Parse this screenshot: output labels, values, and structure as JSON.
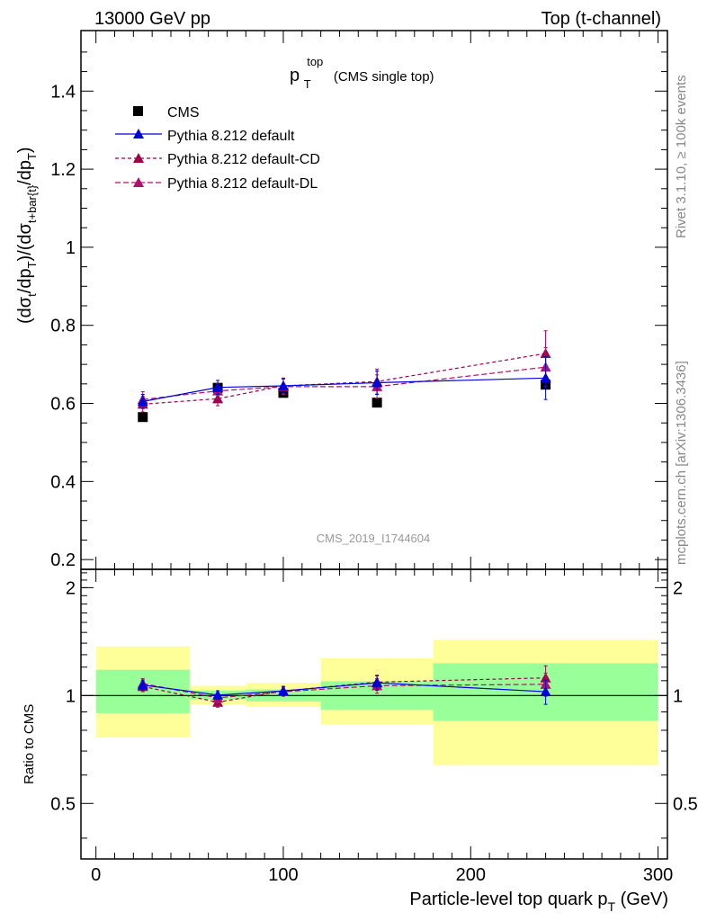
{
  "header": {
    "left": "13000 GeV pp",
    "right": "Top (t-channel)"
  },
  "side_labels": {
    "rivet": "Rivet 3.1.10, ≥ 100k events",
    "mcplots": "mcplots.cern.ch [arXiv:1306.3436]"
  },
  "watermark": "CMS_2019_I1744604",
  "colors": {
    "cms": "#000000",
    "default": "#0000dd",
    "cd": "#a0004a",
    "dl": "#b0106a",
    "band_inner": "#99ff99",
    "band_outer": "#ffff99"
  },
  "chart_data": [
    {
      "type": "scatter",
      "panel": "main",
      "title": {
        "main": "p",
        "sup": "top",
        "sub": "T",
        "rest": "(CMS single top)"
      },
      "ylabel": "(dσt/dpT)/(dσt+bar{t}/dpT)",
      "xlim": [
        -8,
        305
      ],
      "ylim": [
        0.175,
        1.555
      ],
      "yticks": [
        0.2,
        0.4,
        0.6,
        0.8,
        1,
        1.2,
        1.4
      ],
      "ytick_labels": [
        "0.2",
        "0.4",
        "0.6",
        "0.8",
        "1",
        "1.2",
        "1.4"
      ],
      "legend": [
        "CMS",
        "Pythia 8.212 default",
        "Pythia 8.212 default-CD",
        "Pythia 8.212 default-DL"
      ],
      "series": [
        {
          "name": "CMS",
          "x": [
            25,
            65,
            100,
            150,
            240
          ],
          "y": [
            0.565,
            0.64,
            0.627,
            0.602,
            0.648
          ],
          "err": [
            0.0,
            0.0,
            0.0,
            0.0,
            0.0
          ]
        },
        {
          "name": "Pythia 8.212 default",
          "x": [
            25,
            65,
            100,
            150,
            240
          ],
          "y": [
            0.605,
            0.641,
            0.645,
            0.653,
            0.665
          ],
          "err": [
            0.018,
            0.018,
            0.018,
            0.03,
            0.055
          ]
        },
        {
          "name": "Pythia 8.212 default-CD",
          "x": [
            25,
            65,
            100,
            150,
            240
          ],
          "y": [
            0.598,
            0.612,
            0.645,
            0.656,
            0.728
          ],
          "err": [
            0.02,
            0.018,
            0.02,
            0.032,
            0.058
          ]
        },
        {
          "name": "Pythia 8.212 default-DL",
          "x": [
            25,
            65,
            100,
            150,
            240
          ],
          "y": [
            0.61,
            0.632,
            0.643,
            0.643,
            0.693
          ],
          "err": [
            0.02,
            0.02,
            0.02,
            0.03,
            0.05
          ]
        }
      ]
    },
    {
      "type": "scatter",
      "panel": "ratio",
      "ylabel": "Ratio to CMS",
      "xlabel": "Particle-level top quark pT (GeV)",
      "xlim": [
        -8,
        305
      ],
      "ylim": [
        0.35,
        2.25
      ],
      "yticks": [
        0.5,
        1,
        2
      ],
      "ytick_labels": [
        "0.5",
        "1",
        "2"
      ],
      "xticks": [
        0,
        100,
        200,
        300
      ],
      "xtick_labels": [
        "0",
        "100",
        "200",
        "300"
      ],
      "bands": [
        {
          "x0": 0,
          "x1": 50,
          "inner": [
            0.893,
            1.18
          ],
          "outer": [
            0.763,
            1.37
          ]
        },
        {
          "x0": 50,
          "x1": 80,
          "inner": [
            0.975,
            1.033
          ],
          "outer": [
            0.945,
            1.065
          ]
        },
        {
          "x0": 80,
          "x1": 120,
          "inner": [
            0.963,
            1.04
          ],
          "outer": [
            0.93,
            1.085
          ]
        },
        {
          "x0": 120,
          "x1": 180,
          "inner": [
            0.912,
            1.096
          ],
          "outer": [
            0.83,
            1.27
          ]
        },
        {
          "x0": 180,
          "x1": 300,
          "inner": [
            0.85,
            1.23
          ],
          "outer": [
            0.64,
            1.43
          ]
        }
      ],
      "series": [
        {
          "name": "Pythia 8.212 default",
          "x": [
            25,
            65,
            100,
            150,
            240
          ],
          "y": [
            1.07,
            1.003,
            1.03,
            1.085,
            1.025
          ],
          "err": [
            0.035,
            0.028,
            0.03,
            0.05,
            0.08
          ]
        },
        {
          "name": "Pythia 8.212 default-CD",
          "x": [
            25,
            65,
            100,
            150,
            240
          ],
          "y": [
            1.06,
            0.958,
            1.03,
            1.09,
            1.12
          ],
          "err": [
            0.035,
            0.03,
            0.03,
            0.05,
            0.09
          ]
        },
        {
          "name": "Pythia 8.212 default-DL",
          "x": [
            25,
            65,
            100,
            150,
            240
          ],
          "y": [
            1.08,
            0.985,
            1.025,
            1.065,
            1.075
          ],
          "err": [
            0.035,
            0.03,
            0.03,
            0.05,
            0.08
          ]
        }
      ]
    }
  ]
}
